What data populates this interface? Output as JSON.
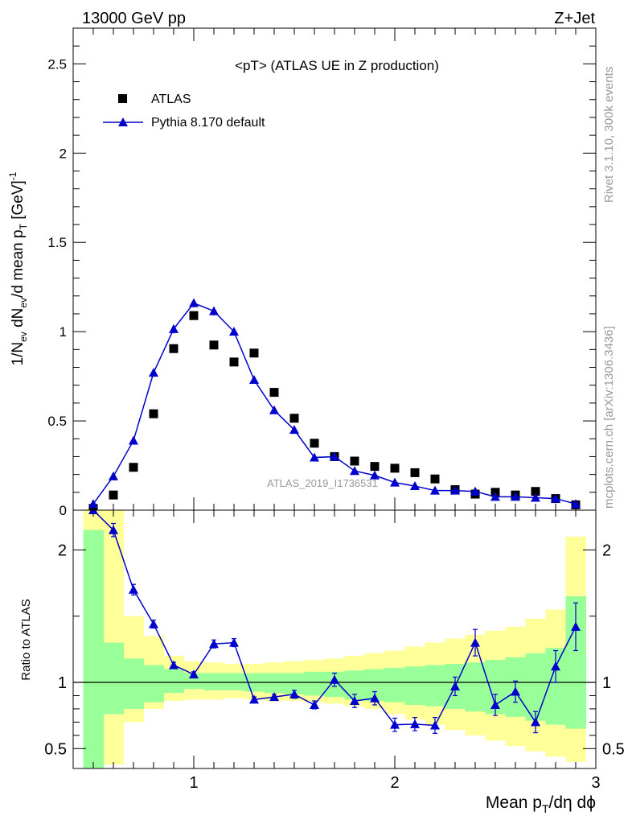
{
  "header": {
    "left": "13000 GeV pp",
    "right": "Z+Jet"
  },
  "side_labels": {
    "rivet": "Rivet 3.1.10,  300k events",
    "mcplots": "mcplots.cern.ch [arXiv:1306.3436]"
  },
  "colors": {
    "data": "#000000",
    "mc": "#0000cc",
    "band_stat": "#99ff99",
    "band_total": "#ffff99"
  },
  "chart_data": [
    {
      "type": "scatter",
      "title": "<pT> (ATLAS UE in Z production)",
      "watermark": "ATLAS_2019_I1736531",
      "ylabel": "1/N_ev dN_ev/d mean p_T [GeV]^-1",
      "xlim": [
        0.4,
        3.0
      ],
      "ylim": [
        0,
        2.7
      ],
      "x_ticks": [
        1,
        2,
        3
      ],
      "y_ticks": [
        0,
        0.5,
        1,
        1.5,
        2,
        2.5
      ],
      "y_tick_labels": [
        "0",
        "0.5",
        "1",
        "1.5",
        "2",
        "2.5"
      ],
      "legend_position": "top-left",
      "series": [
        {
          "name": "ATLAS",
          "marker": "square",
          "x": [
            0.5,
            0.6,
            0.7,
            0.8,
            0.9,
            1.0,
            1.1,
            1.2,
            1.3,
            1.4,
            1.5,
            1.6,
            1.7,
            1.8,
            1.9,
            2.0,
            2.1,
            2.2,
            2.3,
            2.4,
            2.5,
            2.6,
            2.7,
            2.8,
            2.9
          ],
          "y": [
            0.01,
            0.085,
            0.24,
            0.54,
            0.905,
            1.09,
            0.925,
            0.83,
            0.88,
            0.66,
            0.515,
            0.375,
            0.3,
            0.275,
            0.245,
            0.235,
            0.21,
            0.175,
            0.115,
            0.09,
            0.1,
            0.085,
            0.105,
            0.065,
            0.03
          ]
        },
        {
          "name": "Pythia 8.170 default",
          "marker": "triangle",
          "x": [
            0.5,
            0.6,
            0.7,
            0.8,
            0.9,
            1.0,
            1.1,
            1.2,
            1.3,
            1.4,
            1.5,
            1.6,
            1.7,
            1.8,
            1.9,
            2.0,
            2.1,
            2.2,
            2.3,
            2.4,
            2.5,
            2.6,
            2.7,
            2.8,
            2.9
          ],
          "y": [
            0.035,
            0.19,
            0.39,
            0.77,
            1.015,
            1.16,
            1.115,
            1.0,
            0.73,
            0.56,
            0.45,
            0.295,
            0.3,
            0.22,
            0.195,
            0.155,
            0.135,
            0.11,
            0.11,
            0.105,
            0.075,
            0.075,
            0.07,
            0.065,
            0.035
          ],
          "yerr": [
            0.005,
            0.01,
            0.01,
            0.02,
            0.025,
            0.025,
            0.025,
            0.02,
            0.015,
            0.015,
            0.01,
            0.01,
            0.01,
            0.01,
            0.008,
            0.008,
            0.007,
            0.006,
            0.006,
            0.006,
            0.005,
            0.005,
            0.005,
            0.004,
            0.003
          ]
        }
      ]
    },
    {
      "type": "line",
      "xlabel": "Mean p_T/dη dϕ",
      "ylabel": "Ratio to ATLAS",
      "xlim": [
        0.4,
        3.0
      ],
      "ylim": [
        0.35,
        2.3
      ],
      "x_ticks": [
        1,
        2,
        3
      ],
      "x_tick_labels": [
        "1",
        "2",
        "3"
      ],
      "y_ticks": [
        0.5,
        1,
        2
      ],
      "y_tick_labels": [
        "0.5",
        "1",
        "2"
      ],
      "reference_line": 1,
      "bands": {
        "edges": [
          0.45,
          0.55,
          0.65,
          0.75,
          0.85,
          0.95,
          1.05,
          1.15,
          1.25,
          1.35,
          1.45,
          1.55,
          1.65,
          1.75,
          1.85,
          1.95,
          2.05,
          2.15,
          2.25,
          2.35,
          2.45,
          2.55,
          2.65,
          2.75,
          2.85,
          2.95
        ],
        "total_low": [
          0.35,
          0.38,
          0.7,
          0.8,
          0.86,
          0.87,
          0.87,
          0.88,
          0.87,
          0.86,
          0.86,
          0.85,
          0.84,
          0.82,
          0.8,
          0.76,
          0.72,
          0.68,
          0.64,
          0.6,
          0.56,
          0.52,
          0.48,
          0.44,
          0.4
        ],
        "total_high": [
          2.3,
          2.3,
          1.5,
          1.35,
          1.2,
          1.16,
          1.15,
          1.14,
          1.14,
          1.15,
          1.16,
          1.17,
          1.18,
          1.2,
          1.22,
          1.24,
          1.27,
          1.3,
          1.33,
          1.36,
          1.39,
          1.42,
          1.48,
          1.55,
          2.1
        ],
        "stat_low": [
          0.35,
          0.76,
          0.8,
          0.85,
          0.92,
          0.95,
          0.94,
          0.94,
          0.93,
          0.92,
          0.91,
          0.9,
          0.89,
          0.87,
          0.86,
          0.85,
          0.83,
          0.82,
          0.8,
          0.78,
          0.76,
          0.74,
          0.71,
          0.68,
          0.65
        ],
        "stat_high": [
          2.15,
          1.3,
          1.18,
          1.13,
          1.1,
          1.07,
          1.07,
          1.07,
          1.07,
          1.07,
          1.07,
          1.08,
          1.08,
          1.09,
          1.1,
          1.11,
          1.12,
          1.13,
          1.14,
          1.15,
          1.17,
          1.19,
          1.22,
          1.26,
          1.65
        ]
      },
      "series": [
        {
          "name": "Pythia 8.170 default",
          "marker": "triangle",
          "x": [
            0.5,
            0.6,
            0.7,
            0.8,
            0.9,
            1.0,
            1.1,
            1.2,
            1.3,
            1.4,
            1.5,
            1.6,
            1.7,
            1.8,
            1.9,
            2.0,
            2.1,
            2.2,
            2.3,
            2.4,
            2.5,
            2.6,
            2.7,
            2.8,
            2.9
          ],
          "y": [
            2.4,
            2.15,
            1.7,
            1.44,
            1.13,
            1.06,
            1.29,
            1.3,
            0.87,
            0.89,
            0.91,
            0.83,
            1.02,
            0.86,
            0.88,
            0.68,
            0.685,
            0.675,
            0.97,
            1.3,
            0.83,
            0.93,
            0.7,
            1.12,
            1.42
          ],
          "yerr": [
            0.05,
            0.05,
            0.04,
            0.03,
            0.02,
            0.02,
            0.03,
            0.03,
            0.02,
            0.02,
            0.03,
            0.03,
            0.05,
            0.05,
            0.05,
            0.05,
            0.05,
            0.06,
            0.07,
            0.1,
            0.08,
            0.08,
            0.08,
            0.12,
            0.18
          ]
        }
      ]
    }
  ]
}
